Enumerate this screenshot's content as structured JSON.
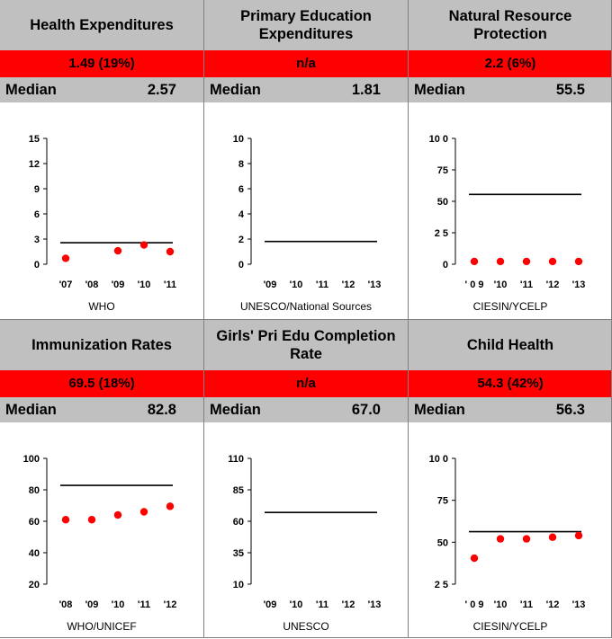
{
  "panels": [
    {
      "title": "Health Expenditures",
      "value": "1.49 (19%)",
      "median_label": "Median",
      "median_value": "2.57",
      "source": "WHO",
      "chart_data": {
        "type": "scatter",
        "categories": [
          "'07",
          "'08",
          "'09",
          "'10",
          "'11"
        ],
        "series": [
          {
            "values": [
              0.7,
              null,
              1.6,
              2.3,
              1.5
            ],
            "color": "#ff0000"
          }
        ],
        "reference_line": 2.57,
        "yticks": [
          "15",
          "12",
          "9",
          "6",
          "3",
          "0"
        ],
        "ylim": [
          0,
          15
        ]
      }
    },
    {
      "title": "Primary Education Expenditures",
      "value": "n/a",
      "median_label": "Median",
      "median_value": "1.81",
      "source": "UNESCO/National Sources",
      "chart_data": {
        "type": "scatter",
        "categories": [
          "'09",
          "'10",
          "'11",
          "'12",
          "'13"
        ],
        "series": [
          {
            "values": [
              null,
              null,
              null,
              null,
              null
            ],
            "color": "#ff0000"
          }
        ],
        "reference_line": 1.81,
        "yticks": [
          "10",
          "8",
          "6",
          "4",
          "2",
          "0"
        ],
        "ylim": [
          0,
          10
        ]
      }
    },
    {
      "title": "Natural Resource Protection",
      "value": "2.2 (6%)",
      "median_label": "Median",
      "median_value": "55.5",
      "source": "CIESIN/YCELP",
      "chart_data": {
        "type": "scatter",
        "categories": [
          "' 0 9",
          "'10",
          "'11",
          "'12",
          "'13"
        ],
        "series": [
          {
            "values": [
              2.2,
              2.2,
              2.2,
              2.2,
              2.2
            ],
            "color": "#ff0000"
          }
        ],
        "reference_line": 55.5,
        "yticks": [
          "10 0",
          "75",
          "50",
          "2 5",
          "0"
        ],
        "ylim": [
          0,
          100
        ]
      }
    },
    {
      "title": "Immunization Rates",
      "value": "69.5 (18%)",
      "median_label": "Median",
      "median_value": "82.8",
      "source": "WHO/UNICEF",
      "chart_data": {
        "type": "scatter",
        "categories": [
          "'08",
          "'09",
          "'10",
          "'11",
          "'12"
        ],
        "series": [
          {
            "values": [
              61,
              61,
              64,
              66,
              69.5
            ],
            "color": "#ff0000"
          }
        ],
        "reference_line": 82.8,
        "yticks": [
          "100",
          "80",
          "60",
          "40",
          "20"
        ],
        "ylim": [
          20,
          100
        ]
      }
    },
    {
      "title": "Girls' Pri Edu Completion Rate",
      "value": "n/a",
      "median_label": "Median",
      "median_value": "67.0",
      "source": "UNESCO",
      "chart_data": {
        "type": "scatter",
        "categories": [
          "'09",
          "'10",
          "'11",
          "'12",
          "'13"
        ],
        "series": [
          {
            "values": [
              null,
              null,
              null,
              null,
              null
            ],
            "color": "#ff0000"
          }
        ],
        "reference_line": 67.0,
        "yticks": [
          "110",
          "85",
          "60",
          "35",
          "10"
        ],
        "ylim": [
          10,
          110
        ]
      }
    },
    {
      "title": "Child Health",
      "value": "54.3 (42%)",
      "median_label": "Median",
      "median_value": "56.3",
      "source": "CIESIN/YCELP",
      "chart_data": {
        "type": "scatter",
        "categories": [
          "' 0 9",
          "'10",
          "'11",
          "'12",
          "'13"
        ],
        "series": [
          {
            "values": [
              40.5,
              52,
              52,
              53,
              54
            ],
            "color": "#ff0000"
          }
        ],
        "reference_line": 56.3,
        "yticks": [
          "10 0",
          "75",
          "50",
          "2 5"
        ],
        "ylim": [
          25,
          100
        ]
      }
    }
  ]
}
